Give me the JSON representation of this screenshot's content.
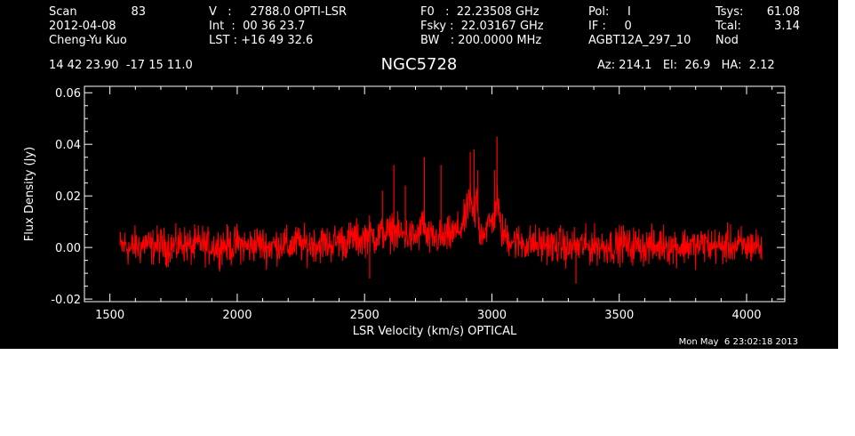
{
  "header": {
    "scan_label": "Scan",
    "scan_value": "83",
    "date": "2012-04-08",
    "observer": "Cheng-Yu Kuo",
    "coords": "14 42 23.90  -17 15 11.0",
    "v_line": "V   :     2788.0 OPTI-LSR",
    "int_line": "Int  :  00 36 23.7",
    "lst_line": "LST : +16 49 32.6",
    "f0_line": "F0   :  22.23508 GHz",
    "fsky_line": "Fsky :  22.03167 GHz",
    "bw_line": "BW   : 200.0000 MHz",
    "pol_line": "Pol:     I",
    "if_line": "IF :     0",
    "project": "AGBT12A_297_10",
    "tsys_label": "Tsys:",
    "tsys_value": "61.08",
    "tcal_label": "Tcal:",
    "tcal_value": "3.14",
    "nod": "Nod",
    "az_el_ha": "Az: 214.1   El:  26.9   HA:  2.12"
  },
  "timestamp": "Mon May  6 23:02:18 2013",
  "chart_data": {
    "type": "line",
    "title": "NGC5728",
    "xlabel": "LSR Velocity (km/s) OPTICAL",
    "ylabel": "Flux Density (Jy)",
    "xlim": [
      1400,
      4150
    ],
    "ylim": [
      -0.021,
      0.0625
    ],
    "x_ticks": [
      1500,
      2000,
      2500,
      3000,
      3500,
      4000
    ],
    "x_tick_labels": [
      "1500",
      "2000",
      "2500",
      "3000",
      "3500",
      "4000"
    ],
    "y_ticks": [
      -0.02,
      0.0,
      0.02,
      0.04,
      0.06
    ],
    "y_tick_labels": [
      "-0.02",
      "0.00",
      "0.02",
      "0.04",
      "0.06"
    ],
    "grid": false,
    "series": [
      {
        "color": "#ff0000",
        "x": [
          1540,
          1560,
          1580,
          1600,
          1620,
          1640,
          1660,
          1680,
          1700,
          1720,
          1740,
          1760,
          1780,
          1800,
          1820,
          1840,
          1860,
          1880,
          1900,
          1920,
          1940,
          1960,
          1980,
          2000,
          2020,
          2040,
          2060,
          2080,
          2100,
          2120,
          2140,
          2160,
          2180,
          2200,
          2220,
          2240,
          2260,
          2280,
          2300,
          2320,
          2340,
          2360,
          2380,
          2400,
          2420,
          2440,
          2460,
          2480,
          2500,
          2520,
          2540,
          2560,
          2580,
          2600,
          2610,
          2620,
          2630,
          2640,
          2660,
          2680,
          2700,
          2720,
          2730,
          2740,
          2760,
          2780,
          2800,
          2820,
          2840,
          2860,
          2880,
          2900,
          2910,
          2920,
          2930,
          2940,
          2950,
          2960,
          2980,
          3000,
          3010,
          3020,
          3030,
          3040,
          3060,
          3080,
          3100,
          3120,
          3140,
          3160,
          3180,
          3200,
          3220,
          3240,
          3260,
          3280,
          3300,
          3320,
          3340,
          3360,
          3380,
          3400,
          3420,
          3440,
          3460,
          3480,
          3500,
          3520,
          3540,
          3560,
          3580,
          3600,
          3620,
          3640,
          3660,
          3680,
          3700,
          3720,
          3740,
          3760,
          3780,
          3800,
          3820,
          3840,
          3860,
          3880,
          3900,
          3920,
          3940,
          3960,
          3980,
          4000,
          4020,
          4040,
          4060
        ],
        "y": [
          0.0,
          0.001,
          -0.001,
          0.001,
          0.0,
          0.002,
          0.0,
          0.001,
          0.001,
          0.0,
          0.001,
          0.0,
          0.002,
          0.001,
          0.0,
          0.001,
          0.002,
          0.0,
          0.001,
          0.0,
          0.001,
          0.001,
          0.0,
          0.002,
          0.001,
          0.0,
          0.001,
          0.002,
          0.001,
          0.0,
          0.001,
          0.001,
          0.002,
          0.0,
          0.001,
          0.002,
          0.001,
          0.001,
          0.002,
          0.001,
          0.002,
          0.001,
          0.002,
          0.003,
          0.002,
          0.003,
          0.004,
          0.003,
          0.004,
          0.005,
          0.004,
          0.005,
          0.006,
          0.005,
          0.009,
          0.006,
          0.005,
          0.005,
          0.005,
          0.004,
          0.004,
          0.006,
          0.011,
          0.004,
          0.003,
          0.004,
          0.003,
          0.004,
          0.005,
          0.006,
          0.008,
          0.012,
          0.02,
          0.015,
          0.01,
          0.02,
          0.007,
          0.006,
          0.008,
          0.01,
          0.012,
          0.02,
          0.01,
          0.006,
          0.004,
          0.003,
          0.002,
          0.002,
          0.001,
          0.002,
          0.001,
          0.001,
          0.002,
          0.0,
          0.001,
          0.001,
          -0.001,
          0.001,
          0.0,
          0.001,
          0.0,
          0.001,
          0.001,
          0.0,
          0.001,
          0.0,
          0.001,
          0.002,
          0.0,
          0.001,
          0.001,
          0.0,
          0.001,
          0.0,
          0.001,
          0.002,
          0.0,
          0.001,
          0.0,
          0.001,
          0.001,
          0.0,
          0.001,
          0.002,
          0.0,
          0.001,
          0.0,
          0.001,
          0.001,
          0.0,
          0.001,
          0.0,
          0.001,
          0.001,
          0.0
        ]
      }
    ],
    "noise_level": 0.0035,
    "spikes": [
      {
        "x": 2615,
        "y": 0.032
      },
      {
        "x": 2660,
        "y": 0.024
      },
      {
        "x": 2735,
        "y": 0.035
      },
      {
        "x": 2800,
        "y": 0.032
      },
      {
        "x": 2915,
        "y": 0.037
      },
      {
        "x": 2930,
        "y": 0.038
      },
      {
        "x": 2945,
        "y": 0.03
      },
      {
        "x": 3010,
        "y": 0.03
      },
      {
        "x": 3020,
        "y": 0.043
      },
      {
        "x": 2570,
        "y": 0.022
      },
      {
        "x": 2520,
        "y": -0.012
      },
      {
        "x": 3330,
        "y": -0.014
      }
    ]
  }
}
